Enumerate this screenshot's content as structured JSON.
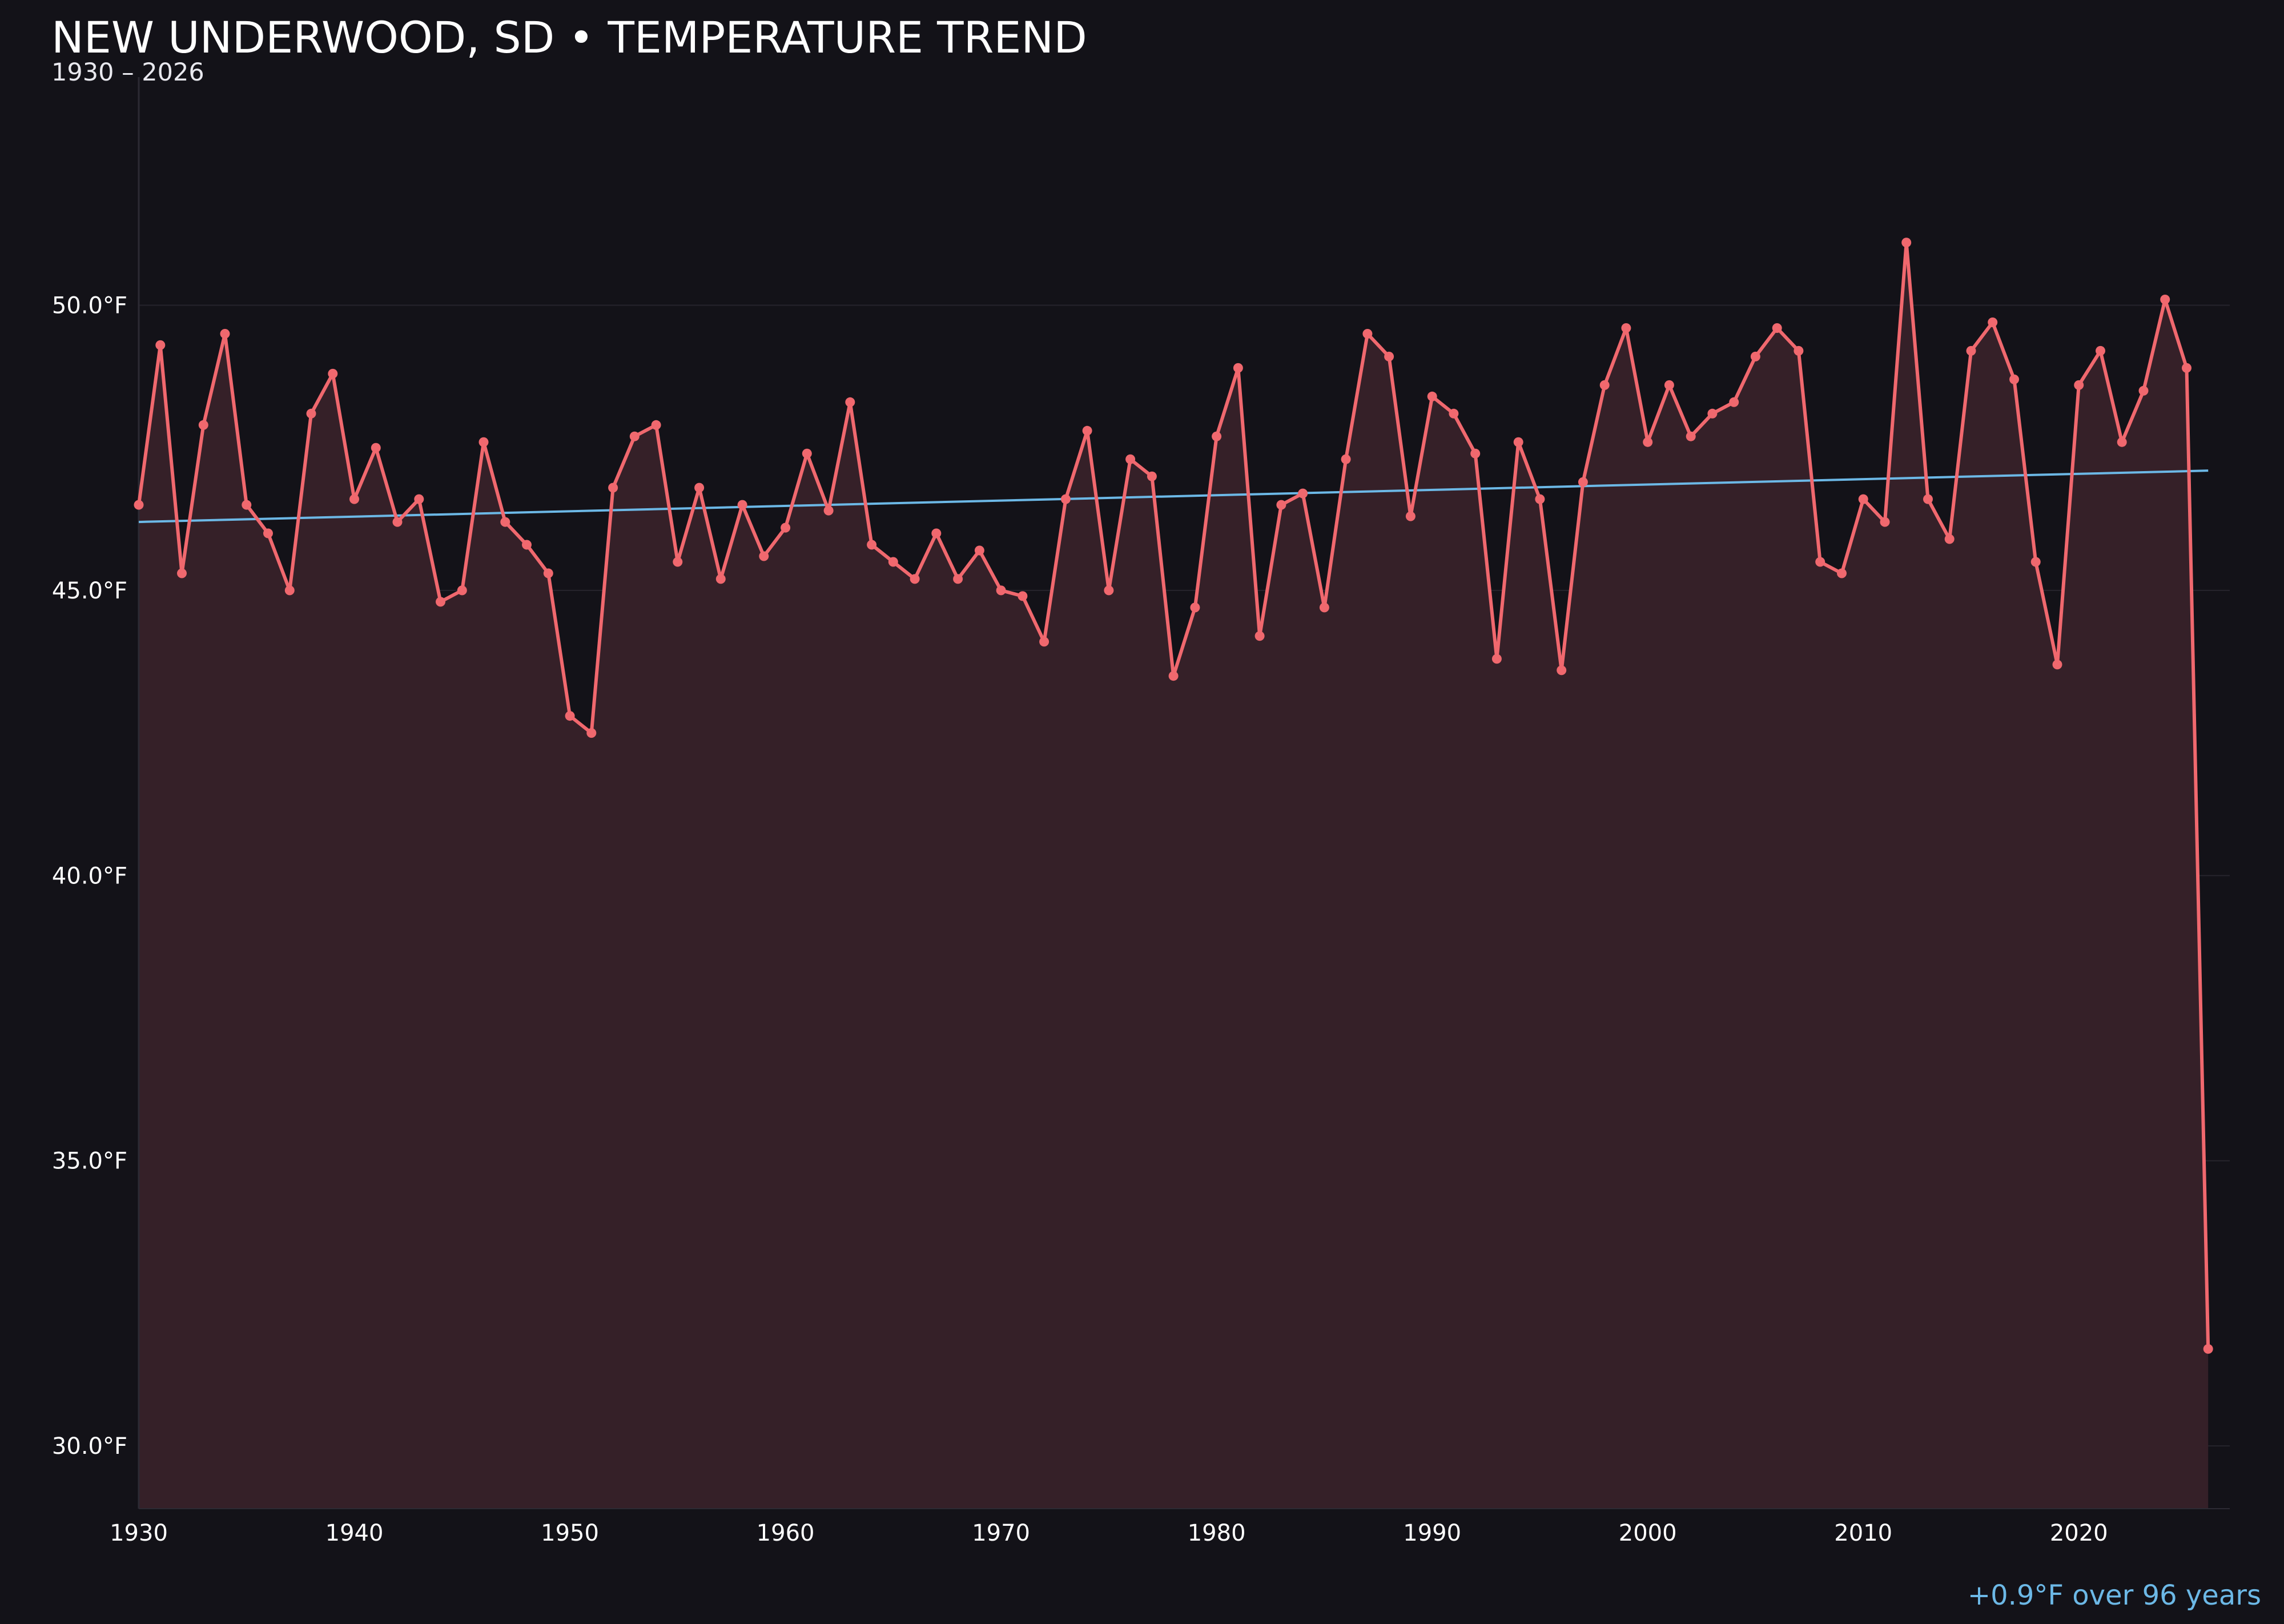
{
  "header": {
    "title": "NEW UNDERWOOD, SD • TEMPERATURE TREND",
    "subtitle": "1930 – 2026"
  },
  "trend_note": "+0.9°F over 96 years",
  "colors": {
    "background": "#131218",
    "series_line": "#f0686e",
    "area_fill": "#352028",
    "trend_line": "#6cb8e6",
    "grid": "#26242c",
    "text": "#ffffff"
  },
  "chart_data": {
    "type": "line",
    "title": "NEW UNDERWOOD, SD • TEMPERATURE TREND",
    "subtitle": "1930 – 2026",
    "xlabel": "",
    "ylabel": "",
    "xlim": [
      1930,
      2027
    ],
    "ylim": [
      28.9,
      54.0
    ],
    "x_ticks": [
      1930,
      1940,
      1950,
      1960,
      1970,
      1980,
      1990,
      2000,
      2010,
      2020
    ],
    "y_ticks": [
      30.0,
      35.0,
      40.0,
      45.0,
      50.0
    ],
    "y_tick_labels": [
      "30.0°F",
      "35.0°F",
      "40.0°F",
      "45.0°F",
      "50.0°F"
    ],
    "grid": true,
    "area_fill": true,
    "series": [
      {
        "x": [
          1930,
          1931,
          1932,
          1933,
          1934,
          1935,
          1936,
          1937,
          1938,
          1939,
          1940,
          1941,
          1942,
          1943,
          1944,
          1945,
          1946,
          1947,
          1948,
          1949,
          1950,
          1951,
          1952,
          1953,
          1954,
          1955,
          1956,
          1957,
          1958,
          1959,
          1960,
          1961,
          1962,
          1963,
          1964,
          1965,
          1966,
          1967,
          1968,
          1969,
          1970,
          1971,
          1972,
          1973,
          1974,
          1975,
          1976,
          1977,
          1978,
          1979,
          1980,
          1981,
          1982,
          1983,
          1984,
          1985,
          1986,
          1987,
          1988,
          1989,
          1990,
          1991,
          1992,
          1993,
          1994,
          1995,
          1996,
          1997,
          1998,
          1999,
          2000,
          2001,
          2002,
          2003,
          2004,
          2005,
          2006,
          2007,
          2008,
          2009,
          2010,
          2011,
          2012,
          2013,
          2014,
          2015,
          2016,
          2017,
          2018,
          2019,
          2020,
          2021,
          2022,
          2023,
          2024,
          2025,
          2026
        ],
        "values": [
          46.5,
          49.3,
          45.3,
          47.9,
          49.5,
          46.5,
          46.0,
          45.0,
          48.1,
          48.8,
          46.6,
          47.5,
          46.2,
          46.6,
          44.8,
          45.0,
          47.6,
          46.2,
          45.8,
          45.3,
          42.8,
          42.5,
          46.8,
          47.7,
          47.9,
          45.5,
          46.8,
          45.2,
          46.5,
          45.6,
          46.1,
          47.4,
          46.4,
          48.3,
          45.8,
          45.5,
          45.2,
          46.0,
          45.2,
          45.7,
          45.0,
          44.9,
          44.1,
          46.6,
          47.8,
          45.0,
          47.3,
          47.0,
          43.5,
          44.7,
          47.7,
          48.9,
          44.2,
          46.5,
          46.7,
          44.7,
          47.3,
          49.5,
          49.1,
          46.3,
          48.4,
          48.1,
          47.4,
          43.8,
          47.6,
          46.6,
          43.6,
          46.9,
          48.6,
          49.6,
          47.6,
          48.6,
          47.7,
          48.1,
          48.3,
          49.1,
          49.6,
          49.2,
          45.5,
          45.3,
          46.6,
          46.2,
          51.1,
          46.6,
          45.9,
          49.2,
          49.7,
          48.7,
          45.5,
          43.7,
          48.6,
          49.2,
          47.6,
          48.5,
          50.1,
          48.9,
          31.7
        ]
      }
    ],
    "trend": {
      "x": [
        1930,
        2026
      ],
      "values": [
        46.2,
        47.1
      ]
    }
  }
}
